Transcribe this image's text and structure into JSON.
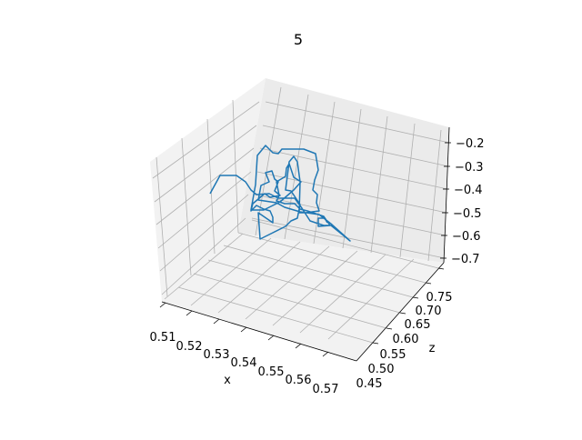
{
  "chart_data": {
    "type": "line",
    "projection": "3d",
    "title": "5",
    "xlabel": "x",
    "ylabel": "z",
    "zlabel": "",
    "x_ticks": [
      "0.51",
      "0.52",
      "0.53",
      "0.54",
      "0.55",
      "0.56",
      "0.57"
    ],
    "y_ticks": [
      "0.45",
      "0.50",
      "0.55",
      "0.60",
      "0.65",
      "0.70",
      "0.75"
    ],
    "z_ticks": [
      "−0.2",
      "−0.3",
      "−0.4",
      "−0.5",
      "−0.6",
      "−0.7"
    ],
    "grid": true,
    "series_color": "#1f77b4"
  }
}
